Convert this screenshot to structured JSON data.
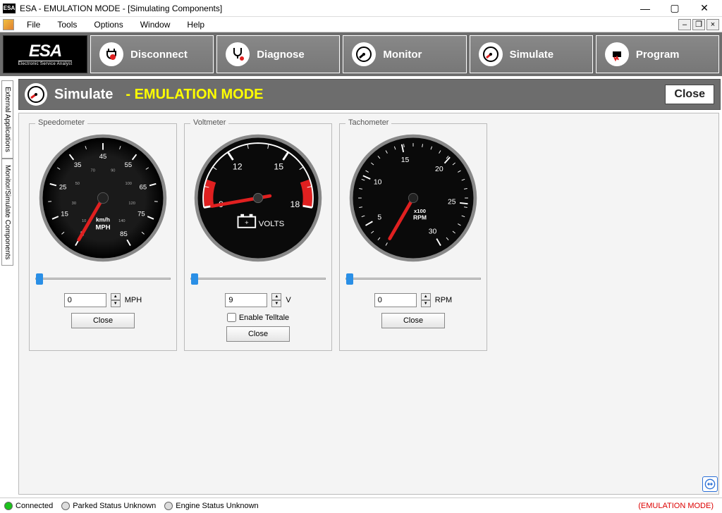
{
  "window": {
    "title": "ESA - EMULATION MODE - [Simulating Components]"
  },
  "menu": {
    "items": [
      "File",
      "Tools",
      "Options",
      "Window",
      "Help"
    ]
  },
  "logo": {
    "main": "ESA",
    "sub": "Electronic Service Analyst"
  },
  "toolbar": {
    "items": [
      {
        "label": "Disconnect",
        "icon": "plug"
      },
      {
        "label": "Diagnose",
        "icon": "stetho"
      },
      {
        "label": "Monitor",
        "icon": "gauge"
      },
      {
        "label": "Simulate",
        "icon": "gauge-red"
      },
      {
        "label": "Program",
        "icon": "chip"
      }
    ]
  },
  "page": {
    "title": "Simulate",
    "mode": "- EMULATION MODE",
    "close": "Close"
  },
  "sidetabs": [
    "External Applications",
    "Monitor/Simulate Components"
  ],
  "gauges": [
    {
      "legend": "Speedometer",
      "type": "speedometer",
      "value": "0",
      "unit": "MPH",
      "close": "Close",
      "slider_min": 0,
      "slider_max": 85,
      "slider_val": 0,
      "face": {
        "outer_ticks": [
          "5",
          "15",
          "25",
          "35",
          "45",
          "55",
          "65",
          "75",
          "85"
        ],
        "inner_ticks": [
          "10",
          "30",
          "50",
          "70",
          "90",
          "100",
          "120",
          "140"
        ],
        "labels": [
          "km/h",
          "MPH"
        ],
        "needle_color": "#e02020",
        "face_color": "#0a0a0a",
        "tick_color": "#ffffff"
      }
    },
    {
      "legend": "Voltmeter",
      "type": "voltmeter",
      "value": "9",
      "unit": "V",
      "telltale": "Enable Telltale",
      "close": "Close",
      "slider_min": 9,
      "slider_max": 18,
      "slider_val": 9,
      "face": {
        "ticks": [
          "9",
          "12",
          "15",
          "18"
        ],
        "label": "VOLTS",
        "red_zones": [
          [
            180,
            215
          ],
          [
            325,
            360
          ]
        ],
        "needle_color": "#e02020",
        "face_color": "#0a0a0a",
        "tick_color": "#ffffff"
      }
    },
    {
      "legend": "Tachometer",
      "type": "tachometer",
      "value": "0",
      "unit": "RPM",
      "close": "Close",
      "slider_min": 0,
      "slider_max": 30,
      "slider_val": 0,
      "face": {
        "ticks": [
          "5",
          "10",
          "15",
          "20",
          "25",
          "30"
        ],
        "labels": [
          "x100",
          "RPM"
        ],
        "needle_color": "#e02020",
        "face_color": "#0a0a0a",
        "tick_color": "#ffffff"
      }
    }
  ],
  "status": {
    "items": [
      {
        "label": "Connected",
        "color": "#1bc21b"
      },
      {
        "label": "Parked Status Unknown",
        "color": "#dddddd"
      },
      {
        "label": "Engine Status Unknown",
        "color": "#dddddd"
      }
    ],
    "emu": "(EMULATION MODE)"
  }
}
